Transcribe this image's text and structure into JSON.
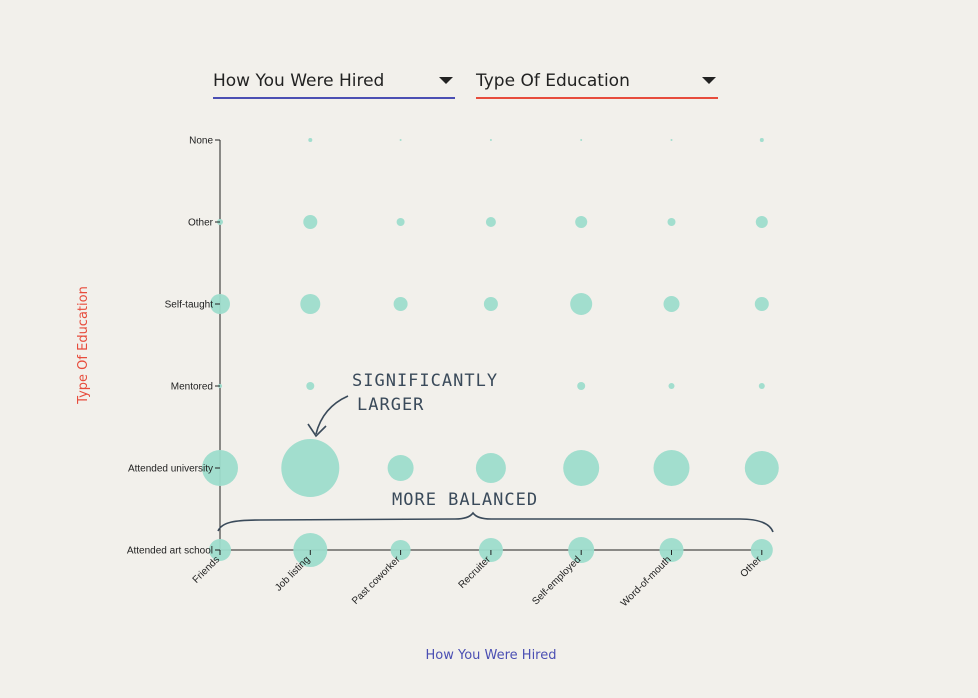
{
  "controls": {
    "x_select": {
      "label": "How You Were Hired",
      "accent": "#4b4fb3"
    },
    "y_select": {
      "label": "Type Of Education",
      "accent": "#e74c3c"
    }
  },
  "chart_data": {
    "type": "scatter",
    "bubble_color": "#9ddccc",
    "xlabel": "How You Were Hired",
    "ylabel": "Type Of Education",
    "xlabel_color": "#4b4fb3",
    "ylabel_color": "#e74c3c",
    "x_categories": [
      "Friends",
      "Job listing",
      "Past coworker",
      "Recruiter",
      "Self-employed",
      "Word-of-mouth",
      "Other"
    ],
    "y_categories": [
      "Attended art school",
      "Attended university",
      "Mentored",
      "Self-taught",
      "Other",
      "None"
    ],
    "size_scale_max": 29,
    "sizes": [
      [
        11,
        17,
        10,
        12,
        13,
        12,
        11
      ],
      [
        18,
        29,
        13,
        15,
        18,
        18,
        17
      ],
      [
        2,
        4,
        0,
        0,
        4,
        3,
        3
      ],
      [
        10,
        10,
        7,
        7,
        11,
        8,
        7
      ],
      [
        3,
        7,
        4,
        5,
        6,
        4,
        6
      ],
      [
        0,
        2,
        1,
        1,
        1,
        1,
        2
      ]
    ],
    "annotations": [
      {
        "text_lines": [
          "SIGNIFICANTLY",
          "LARGER"
        ]
      },
      {
        "text_lines": [
          "MORE BALANCED"
        ]
      }
    ]
  }
}
